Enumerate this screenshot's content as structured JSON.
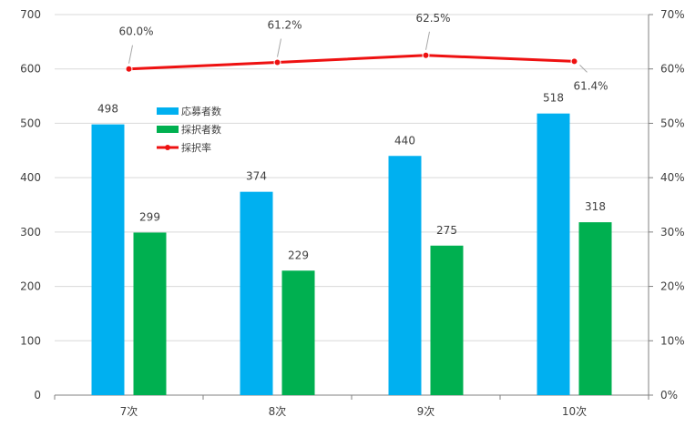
{
  "chart_data": {
    "type": "bar+line",
    "categories": [
      "7次",
      "8次",
      "9次",
      "10次"
    ],
    "series": [
      {
        "name": "応募者数",
        "type": "bar",
        "axis": "left",
        "color": "#00b0f0",
        "values": [
          498,
          374,
          440,
          518
        ],
        "labels": [
          "498",
          "374",
          "440",
          "518"
        ]
      },
      {
        "name": "採択者数",
        "type": "bar",
        "axis": "left",
        "color": "#00b050",
        "values": [
          299,
          229,
          275,
          318
        ],
        "labels": [
          "299",
          "229",
          "275",
          "318"
        ]
      },
      {
        "name": "採択率",
        "type": "line",
        "axis": "right",
        "color": "#ee1111",
        "values": [
          60.0,
          61.2,
          62.5,
          61.4
        ],
        "labels": [
          "60.0%",
          "61.2%",
          "62.5%",
          "61.4%"
        ]
      }
    ],
    "y_left": {
      "range": [
        0,
        700
      ],
      "ticks": [
        0,
        100,
        200,
        300,
        400,
        500,
        600,
        700
      ],
      "tick_labels": [
        "0",
        "100",
        "200",
        "300",
        "400",
        "500",
        "600",
        "700"
      ]
    },
    "y_right": {
      "range": [
        0,
        70
      ],
      "ticks": [
        0,
        10,
        20,
        30,
        40,
        50,
        60,
        70
      ],
      "tick_labels": [
        "0%",
        "10%",
        "20%",
        "30%",
        "40%",
        "50%",
        "60%",
        "70%"
      ]
    },
    "grid": "horizontal",
    "legend_position": "inside-upper-left",
    "colors": {
      "grid": "#d9d9d9",
      "axis": "#808080",
      "text": "#404040"
    }
  }
}
